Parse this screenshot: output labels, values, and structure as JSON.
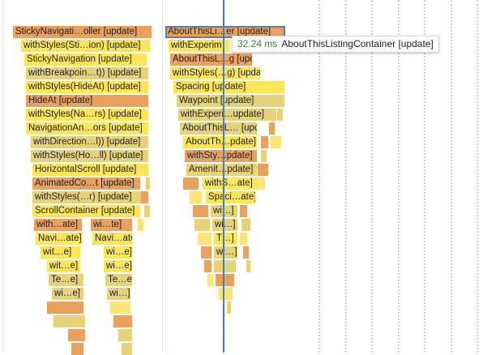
{
  "colors": {
    "orange": "#e8a15f",
    "orange_dark": "#e59150",
    "yellow": "#fde55a",
    "yellow_light": "#fbe47a",
    "olive": "#e6d27a",
    "tan": "#d8c06a",
    "selected_outline": "#5b7fa8",
    "cursor_line": "#4a7fb5",
    "tooltip_ms": "#2e8b2e"
  },
  "tooltip": {
    "duration": "32.24 ms",
    "component": "AboutThisListingContainer [update]"
  },
  "flame": {
    "bars": [
      {
        "label": "StickyNavigati…oller [update]",
        "color": "orange"
      },
      {
        "label": "withStyles(Sti…ion) [update]",
        "color": "yellow"
      },
      {
        "label": "StickyNavigation [update]",
        "color": "yellow"
      },
      {
        "label": "withBreakpoin…t)) [update]",
        "color": "olive"
      },
      {
        "label": "withStyles(HideAt) [update]",
        "color": "yellow"
      },
      {
        "label": "HideAt [update]",
        "color": "orange"
      },
      {
        "label": "withStyles(Na…rs) [update]",
        "color": "yellow"
      },
      {
        "label": "NavigationAn…ors [update]",
        "color": "yellow"
      },
      {
        "label": "withDirection…l)) [update]",
        "color": "olive"
      },
      {
        "label": "withStyles(Ho…ll) [update]",
        "color": "olive"
      },
      {
        "label": "HorizontalScroll [update]",
        "color": "yellow"
      },
      {
        "label": "AnimatedCo…t [update]",
        "color": "orange"
      },
      {
        "label": "withStyles(…r) [update]",
        "color": "olive"
      },
      {
        "label": "ScrollContainer [update]",
        "color": "yellow"
      },
      {
        "label": "with…ate]",
        "color": "orange"
      },
      {
        "label": "wi…te]",
        "color": "orange"
      },
      {
        "label": "Navi…ate]",
        "color": "yellow"
      },
      {
        "label": "Navi…ate]",
        "color": "yellow"
      },
      {
        "label": "wit…e]",
        "color": "yellow"
      },
      {
        "label": "wi…e]",
        "color": "yellow"
      },
      {
        "label": "wit…e]",
        "color": "yellow"
      },
      {
        "label": "wi…e]",
        "color": "yellow"
      },
      {
        "label": "Te…e]",
        "color": "olive"
      },
      {
        "label": "Te…e]",
        "color": "olive"
      },
      {
        "label": "wi…e]",
        "color": "olive"
      },
      {
        "label": "wi…]",
        "color": "olive"
      },
      {
        "label": "AboutThisLi…er [update]",
        "color": "orange",
        "selected": true
      },
      {
        "label": "withExperim",
        "color": "yellow"
      },
      {
        "label": "AboutThisL…g [update]",
        "color": "orange"
      },
      {
        "label": "withStyles(…g) [update]",
        "color": "yellow"
      },
      {
        "label": "Spacing [update]",
        "color": "yellow"
      },
      {
        "label": "Waypoint [update]",
        "color": "olive"
      },
      {
        "label": "withExperi…update]",
        "color": "olive"
      },
      {
        "label": "AboutThisL… [update]",
        "color": "olive"
      },
      {
        "label": "AboutTh…pdate]",
        "color": "yellow"
      },
      {
        "label": "withSty…pdate]",
        "color": "orange"
      },
      {
        "label": "Amenit…pdate]",
        "color": "olive"
      },
      {
        "label": "withS…ate]",
        "color": "yellow"
      },
      {
        "label": "Spaci…ate]",
        "color": "yellow"
      },
      {
        "label": "wi…]",
        "color": "olive"
      },
      {
        "label": "wi…]",
        "color": "olive"
      },
      {
        "label": "T…]",
        "color": "yellow"
      },
      {
        "label": "wi…]",
        "color": "olive"
      }
    ]
  }
}
